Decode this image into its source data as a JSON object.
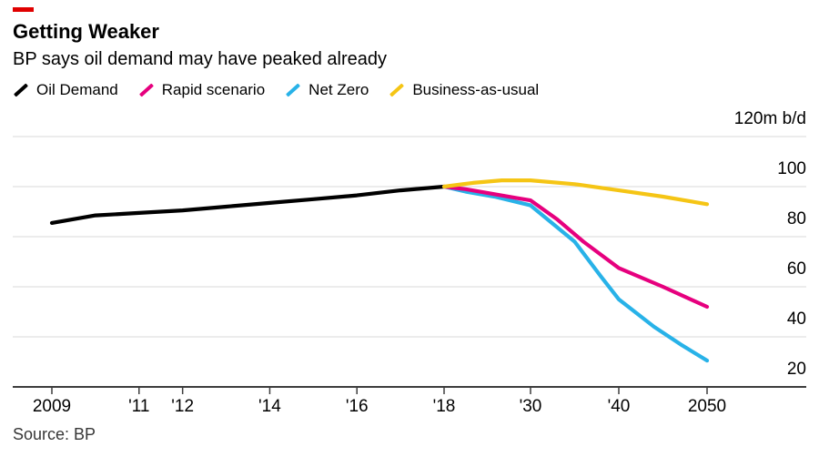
{
  "header": {
    "accent_color": "#e00000",
    "title": "Getting Weaker",
    "subtitle": "BP says oil demand may have peaked already"
  },
  "legend": {
    "items": [
      {
        "label": "Oil Demand",
        "color": "#000000"
      },
      {
        "label": "Rapid scenario",
        "color": "#e6007e"
      },
      {
        "label": "Net Zero",
        "color": "#28b2e8"
      },
      {
        "label": "Business-as-usual",
        "color": "#f5c515"
      }
    ]
  },
  "chart_data": {
    "type": "line",
    "title": "Getting Weaker",
    "subtitle": "BP says oil demand may have peaked already",
    "ylabel": "m b/d",
    "ylim": [
      20,
      120
    ],
    "grid": "horizontal",
    "legend_position": "top",
    "y_ticks": [
      {
        "value": 120,
        "label": "120m b/d"
      },
      {
        "value": 100,
        "label": "100"
      },
      {
        "value": 80,
        "label": "80"
      },
      {
        "value": 60,
        "label": "60"
      },
      {
        "value": 40,
        "label": "40"
      },
      {
        "value": 20,
        "label": "20"
      }
    ],
    "x_ticks": [
      {
        "year": 2009,
        "label": "2009"
      },
      {
        "year": 2011,
        "label": "'11"
      },
      {
        "year": 2012,
        "label": "'12"
      },
      {
        "year": 2014,
        "label": "'14"
      },
      {
        "year": 2016,
        "label": "'16"
      },
      {
        "year": 2018,
        "label": "'18"
      },
      {
        "year": 2030,
        "label": "'30"
      },
      {
        "year": 2040,
        "label": "'40"
      },
      {
        "year": 2050,
        "label": "2050"
      }
    ],
    "series": [
      {
        "name": "Oil Demand",
        "color": "#000000",
        "points": [
          [
            2009,
            85.5
          ],
          [
            2010,
            88.5
          ],
          [
            2011,
            89.5
          ],
          [
            2012,
            90.5
          ],
          [
            2013,
            92
          ],
          [
            2014,
            93.5
          ],
          [
            2015,
            95
          ],
          [
            2016,
            96.5
          ],
          [
            2017,
            98.5
          ],
          [
            2018,
            100
          ]
        ]
      },
      {
        "name": "Rapid scenario",
        "color": "#e6007e",
        "points": [
          [
            2018,
            100
          ],
          [
            2021,
            99
          ],
          [
            2025,
            97
          ],
          [
            2028,
            95.5
          ],
          [
            2030,
            94.5
          ],
          [
            2033,
            87
          ],
          [
            2036,
            78
          ],
          [
            2040,
            67.5
          ],
          [
            2045,
            60
          ],
          [
            2050,
            52
          ]
        ]
      },
      {
        "name": "Net Zero",
        "color": "#28b2e8",
        "points": [
          [
            2018,
            100
          ],
          [
            2021,
            98
          ],
          [
            2025,
            96
          ],
          [
            2030,
            92.5
          ],
          [
            2035,
            78
          ],
          [
            2038,
            64
          ],
          [
            2040,
            55
          ],
          [
            2044,
            44
          ],
          [
            2047,
            37
          ],
          [
            2050,
            30.5
          ]
        ]
      },
      {
        "name": "Business-as-usual",
        "color": "#f5c515",
        "points": [
          [
            2018,
            100
          ],
          [
            2022,
            101.5
          ],
          [
            2026,
            102.5
          ],
          [
            2030,
            102.5
          ],
          [
            2035,
            101
          ],
          [
            2040,
            98.5
          ],
          [
            2045,
            96
          ],
          [
            2050,
            93
          ]
        ]
      }
    ]
  },
  "source": "Source: BP"
}
